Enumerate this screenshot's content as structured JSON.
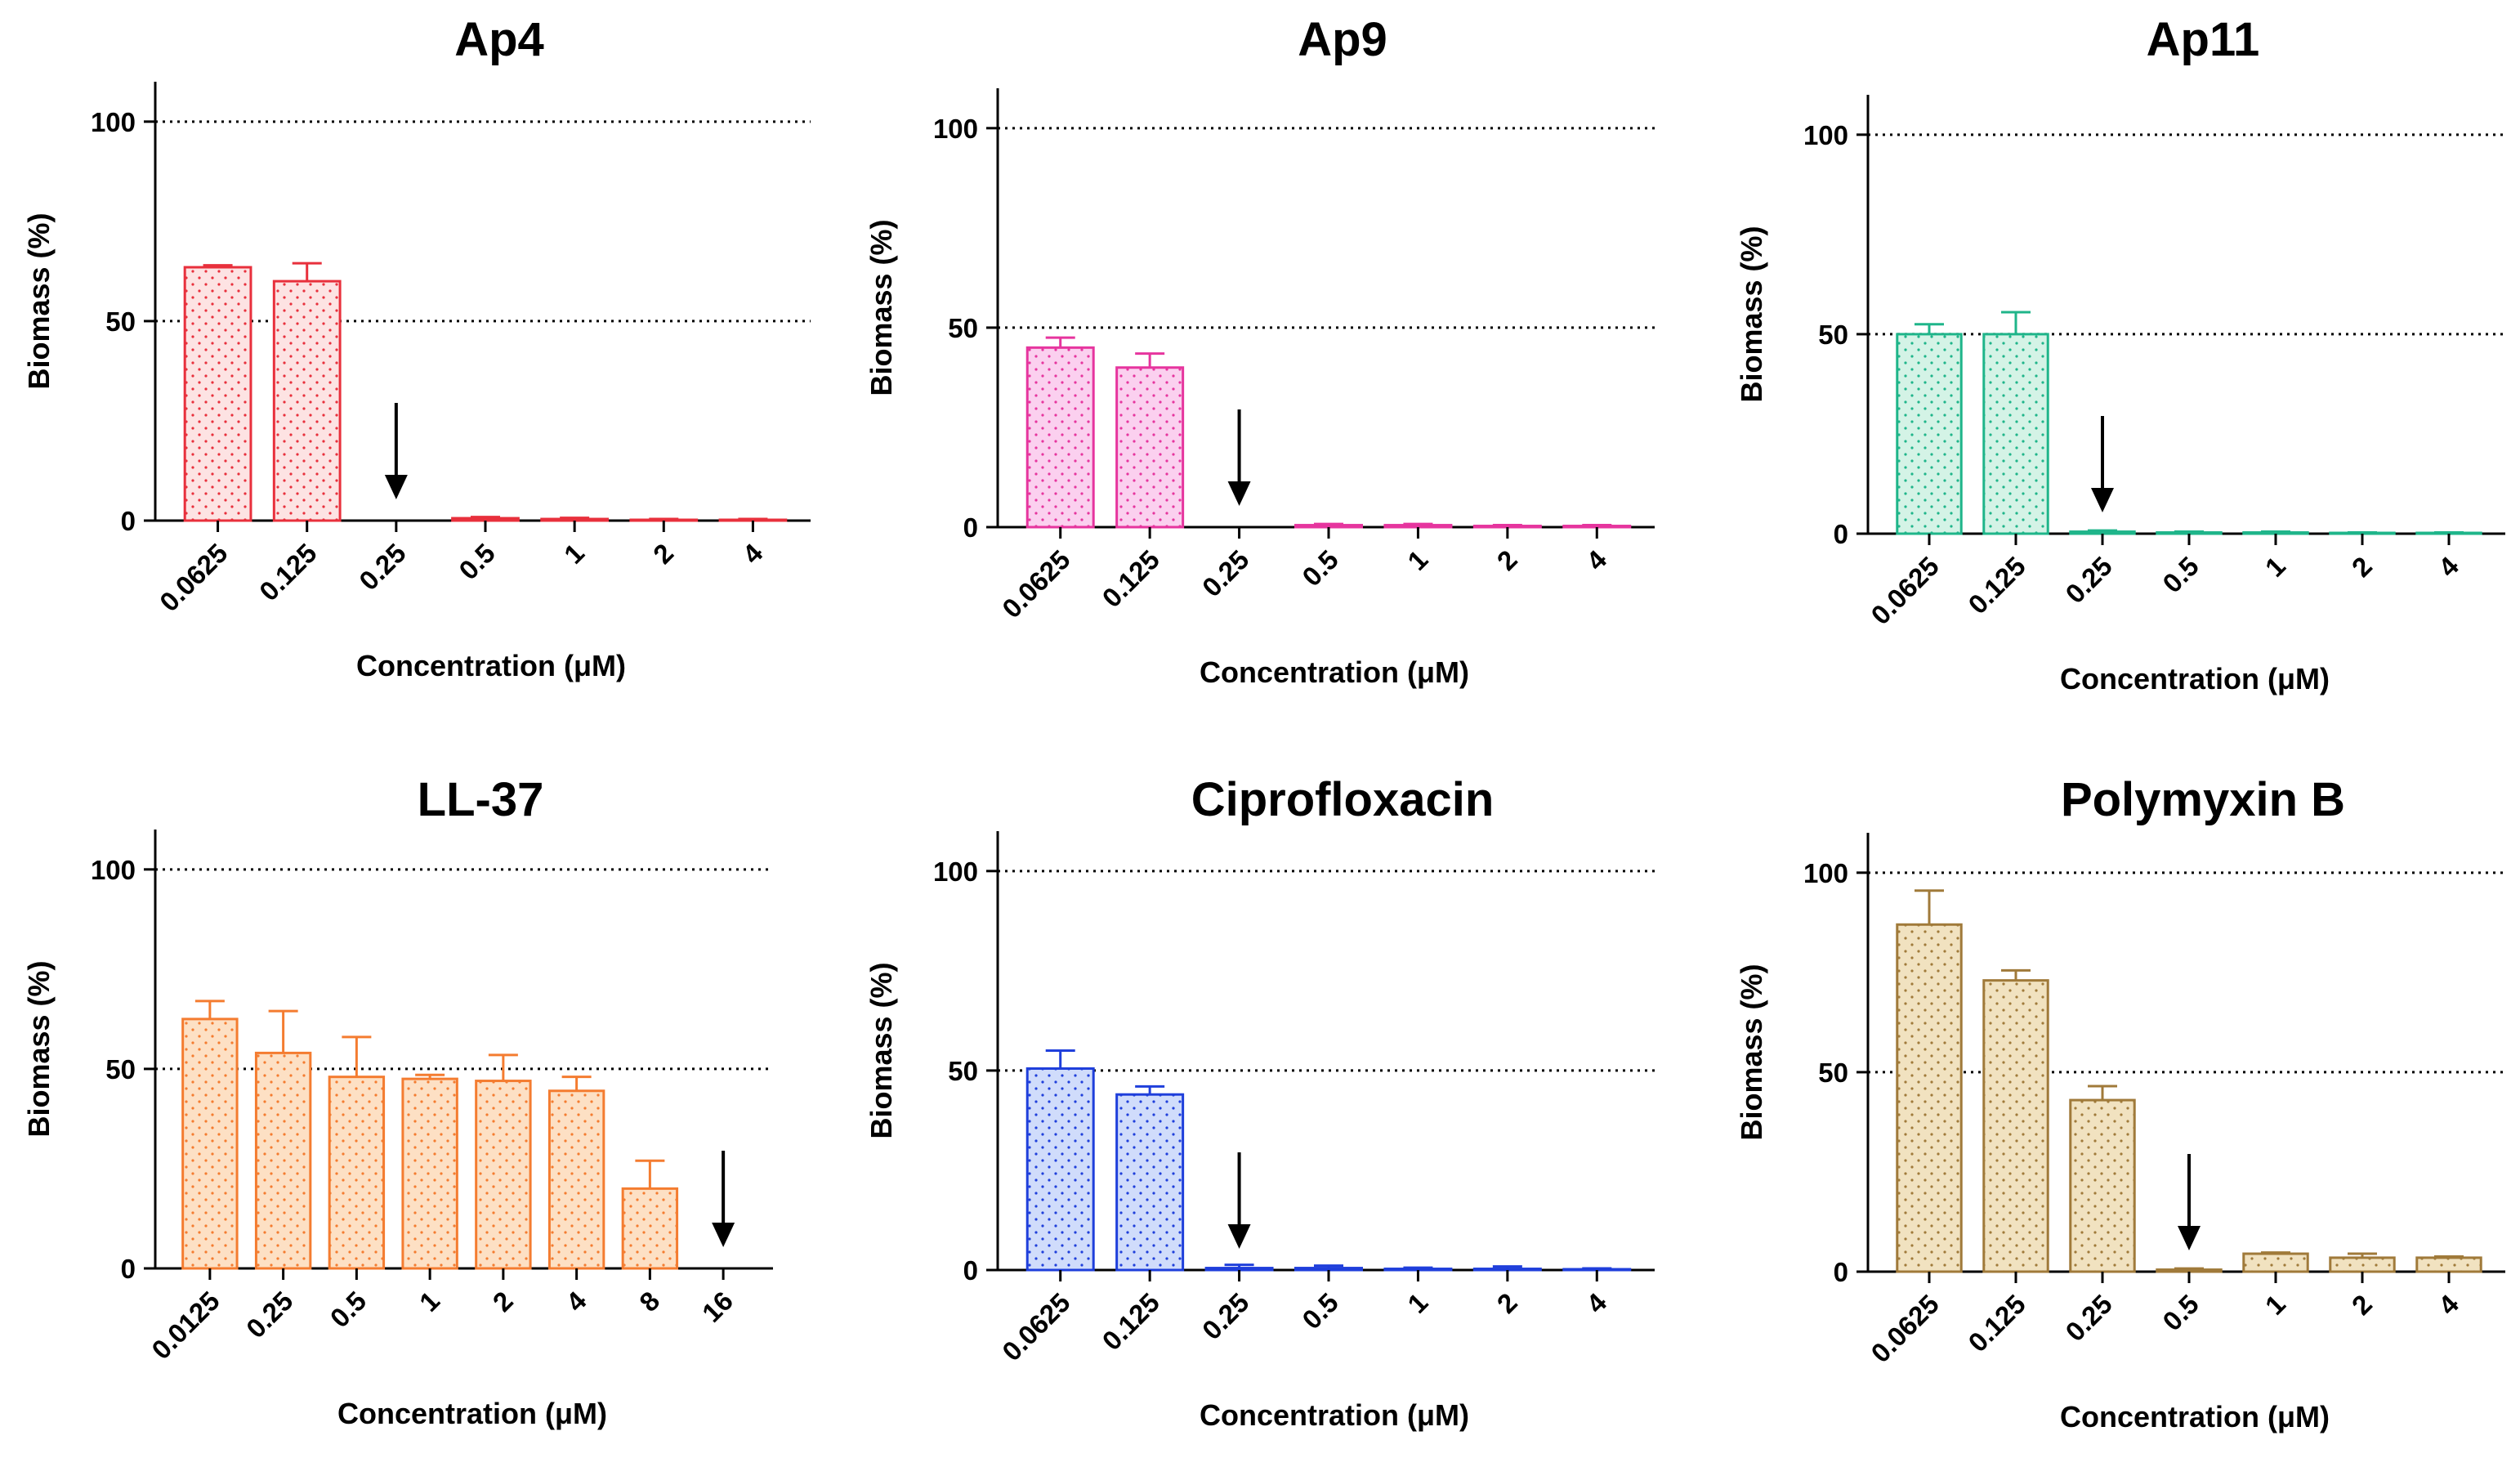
{
  "chart_data": [
    {
      "type": "bar",
      "title": "Ap4",
      "xlabel": "Concentration (μM)",
      "ylabel": "Biomass (%)",
      "ylim": [
        0,
        110
      ],
      "yticks": [
        0,
        50,
        100
      ],
      "gridlines": [
        50,
        100
      ],
      "categories": [
        "0.0625",
        "0.125",
        "0.25",
        "0.5",
        "1",
        "2",
        "4"
      ],
      "values": [
        63.5,
        60,
        0,
        0.6,
        0.4,
        0.2,
        0.2
      ],
      "errors": [
        0.5,
        4.5,
        0,
        0.3,
        0.3,
        0.2,
        0.2
      ],
      "color": "#e8303c",
      "fill": "#fde3e3",
      "arrow_at": "0.25"
    },
    {
      "type": "bar",
      "title": "Ap9",
      "xlabel": "Concentration (μM)",
      "ylabel": "Biomass (%)",
      "ylim": [
        0,
        110
      ],
      "yticks": [
        0,
        50,
        100
      ],
      "gridlines": [
        50,
        100
      ],
      "categories": [
        "0.0625",
        "0.125",
        "0.25",
        "0.5",
        "1",
        "2",
        "4"
      ],
      "values": [
        45,
        40,
        0,
        0.5,
        0.5,
        0.3,
        0.3
      ],
      "errors": [
        2.5,
        3.5,
        0,
        0.3,
        0.3,
        0.2,
        0.2
      ],
      "color": "#e6359e",
      "fill": "#fbd0ef",
      "arrow_at": "0.25"
    },
    {
      "type": "bar",
      "title": "Ap11",
      "xlabel": "Concentration (μM)",
      "ylabel": "Biomass (%)",
      "ylim": [
        0,
        110
      ],
      "yticks": [
        0,
        50,
        100
      ],
      "gridlines": [
        50,
        100
      ],
      "categories": [
        "0.0625",
        "0.125",
        "0.25",
        "0.5",
        "1",
        "2",
        "4"
      ],
      "values": [
        50,
        50,
        0.5,
        0.3,
        0.3,
        0.2,
        0.2
      ],
      "errors": [
        2.5,
        5.5,
        0.3,
        0.2,
        0.2,
        0.1,
        0.1
      ],
      "color": "#1fb58a",
      "fill": "#d4f3e6",
      "arrow_at": "0.25"
    },
    {
      "type": "bar",
      "title": "LL-37",
      "xlabel": "Concentration (μM)",
      "ylabel": "Biomass (%)",
      "ylim": [
        0,
        110
      ],
      "yticks": [
        0,
        50,
        100
      ],
      "gridlines": [
        50,
        100
      ],
      "categories": [
        "0.0125",
        "0.25",
        "0.5",
        "1",
        "2",
        "4",
        "8",
        "16"
      ],
      "values": [
        62.5,
        54,
        48,
        47.5,
        47,
        44.5,
        20,
        0
      ],
      "errors": [
        4.5,
        10.5,
        10,
        1,
        6.5,
        3.5,
        7,
        0
      ],
      "color": "#f47c30",
      "fill": "#fde0c4",
      "arrow_at": "16"
    },
    {
      "type": "bar",
      "title": "Ciprofloxacin",
      "xlabel": "Concentration (μM)",
      "ylabel": "Biomass (%)",
      "ylim": [
        0,
        110
      ],
      "yticks": [
        0,
        50,
        100
      ],
      "gridlines": [
        50,
        100
      ],
      "categories": [
        "0.0625",
        "0.125",
        "0.25",
        "0.5",
        "1",
        "2",
        "4"
      ],
      "values": [
        50.5,
        44,
        0.5,
        0.5,
        0.3,
        0.3,
        0.2
      ],
      "errors": [
        4.5,
        2,
        0.8,
        0.6,
        0.3,
        0.6,
        0.2
      ],
      "color": "#1f3fdb",
      "fill": "#d0dcfb",
      "arrow_at": "0.25"
    },
    {
      "type": "bar",
      "title": "Polymyxin B",
      "xlabel": "Concentration (μM)",
      "ylabel": "Biomass (%)",
      "ylim": [
        0,
        110
      ],
      "yticks": [
        0,
        50,
        100
      ],
      "gridlines": [
        50,
        100
      ],
      "categories": [
        "0.0625",
        "0.125",
        "0.25",
        "0.5",
        "1",
        "2",
        "4"
      ],
      "values": [
        87,
        73,
        43,
        0.5,
        4.5,
        3.5,
        3.5
      ],
      "errors": [
        8.5,
        2.5,
        3.5,
        0.3,
        0.3,
        1,
        0.3
      ],
      "color": "#a07a3a",
      "fill": "#f1e2c0",
      "arrow_at": "0.5"
    }
  ]
}
